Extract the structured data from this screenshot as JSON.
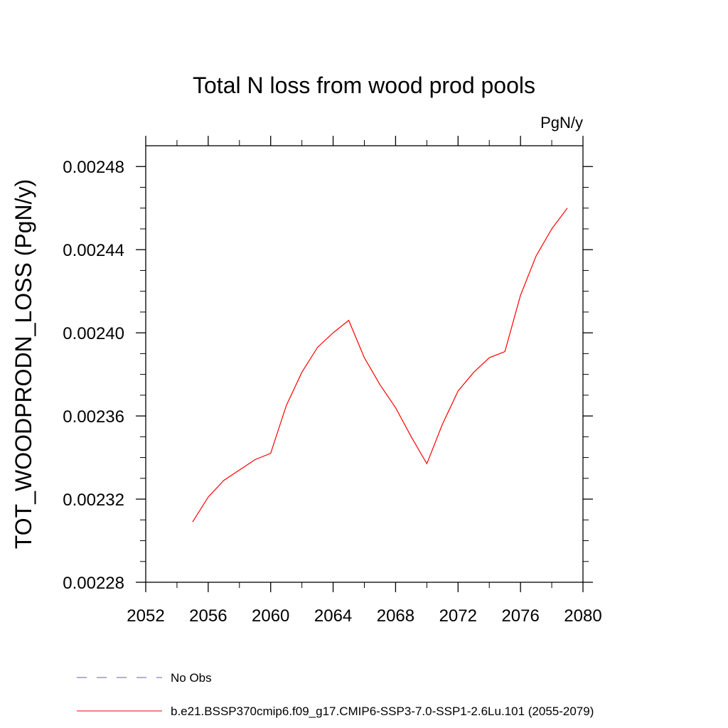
{
  "chart_data": {
    "type": "line",
    "title": "Total N loss from wood prod pools",
    "units_label": "PgN/y",
    "xlabel": "",
    "ylabel": "TOT_WOODPRODN_LOSS  (PgN/y)",
    "xlim": [
      2052,
      2080
    ],
    "ylim": [
      0.00228,
      0.00249
    ],
    "x_ticks": [
      2052,
      2056,
      2060,
      2064,
      2068,
      2072,
      2076,
      2080
    ],
    "x_tick_labels": [
      "2052",
      "2056",
      "2060",
      "2064",
      "2068",
      "2072",
      "2076",
      "2080"
    ],
    "y_ticks": [
      0.00228,
      0.00232,
      0.00236,
      0.0024,
      0.00244,
      0.00248
    ],
    "y_tick_labels": [
      "0.00228",
      "0.00232",
      "0.00236",
      "0.00240",
      "0.00244",
      "0.00248"
    ],
    "grid": false,
    "legend_position": "bottom",
    "series": [
      {
        "name": "b.e21.BSSP370cmip6.f09_g17.CMIP6-SSP3-7.0-SSP1-2.6Lu.101 (2055-2079)",
        "color": "#ff0000",
        "style": "solid",
        "x": [
          2055,
          2056,
          2057,
          2058,
          2059,
          2060,
          2061,
          2062,
          2063,
          2064,
          2065,
          2066,
          2067,
          2068,
          2069,
          2070,
          2071,
          2072,
          2073,
          2074,
          2075,
          2076,
          2077,
          2078,
          2079
        ],
        "y": [
          0.002309,
          0.002321,
          0.002329,
          0.002334,
          0.002339,
          0.002342,
          0.002365,
          0.002381,
          0.002393,
          0.0024,
          0.002406,
          0.002388,
          0.002375,
          0.002364,
          0.00235,
          0.002337,
          0.002356,
          0.002372,
          0.002381,
          0.002388,
          0.002391,
          0.002418,
          0.002437,
          0.00245,
          0.00246
        ]
      }
    ],
    "legend": [
      {
        "label": "No Obs",
        "color": "#6a5acd",
        "style": "dashed"
      },
      {
        "label": "b.e21.BSSP370cmip6.f09_g17.CMIP6-SSP3-7.0-SSP1-2.6Lu.101 (2055-2079)",
        "color": "#ff0000",
        "style": "solid"
      }
    ]
  }
}
